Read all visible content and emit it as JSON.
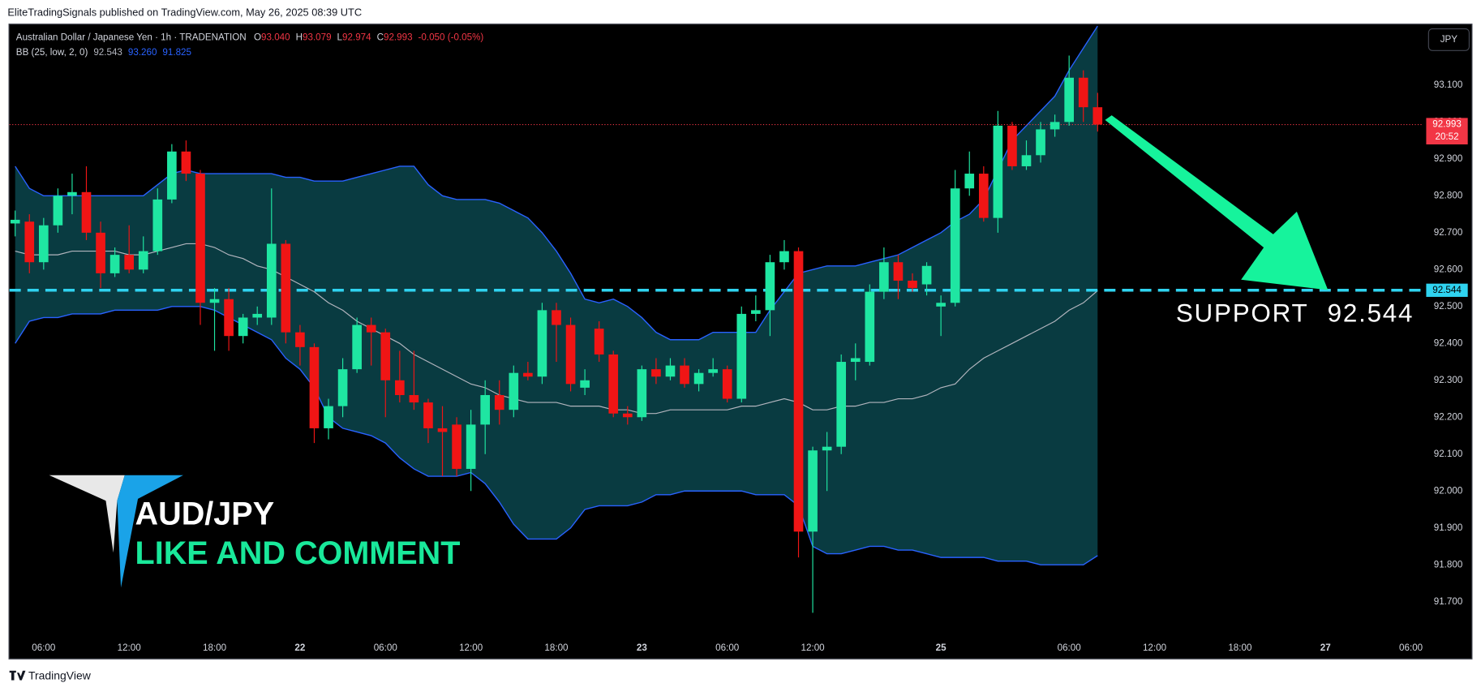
{
  "header": {
    "published": "EliteTradingSignals published on TradingView.com, May 26, 2025 08:39 UTC",
    "footer": "TradingView"
  },
  "chart_data": {
    "type": "candlestick",
    "symbol": "Australian Dollar / Japanese Yen · 1h · TRADENATION",
    "currency": "JPY",
    "ohlc_legend": [
      {
        "label": "O",
        "value": {
          "value": 93.04,
          "label": "93.040"
        }
      },
      {
        "label": "H",
        "value": {
          "value": 93.079,
          "label": "93.079"
        }
      },
      {
        "label": "L",
        "value": {
          "value": 92.974,
          "label": "92.974"
        }
      },
      {
        "label": "C",
        "value": {
          "value": 92.993,
          "label": "92.993"
        }
      }
    ],
    "change": "-0.050 (-0.05%)",
    "bb_legend": {
      "label": "BB (25, low, 2, 0)",
      "values": [
        {
          "value": 92.543,
          "label": "92.543"
        },
        {
          "value": 93.26,
          "label": "93.260"
        },
        {
          "value": 91.825,
          "label": "91.825"
        }
      ]
    },
    "up_color": "#1fe6a2",
    "down_color": "#f01515",
    "x": [
      0,
      1,
      2,
      3,
      4,
      5,
      6,
      7,
      8,
      9,
      10,
      11,
      12,
      13,
      14,
      15,
      16,
      17,
      18,
      19,
      20,
      21,
      22,
      23,
      24,
      25,
      26,
      27,
      28,
      29,
      30,
      31,
      32,
      33,
      34,
      35,
      36,
      37,
      38,
      39,
      40,
      41,
      42,
      43,
      44,
      45,
      46,
      47,
      48,
      49,
      50,
      51,
      52,
      53,
      54,
      55,
      56,
      57,
      58,
      59,
      60,
      61,
      62,
      63,
      64,
      65,
      66,
      67,
      68,
      69,
      70,
      71,
      72,
      73,
      74,
      75,
      76
    ],
    "open": [
      92.725,
      92.73,
      92.62,
      92.72,
      92.8,
      92.81,
      92.7,
      92.59,
      92.64,
      92.6,
      92.65,
      92.79,
      92.92,
      92.86,
      92.51,
      92.52,
      92.42,
      92.47,
      92.47,
      92.67,
      92.43,
      92.39,
      92.17,
      92.23,
      92.33,
      92.45,
      92.43,
      92.3,
      92.26,
      92.24,
      92.17,
      92.18,
      92.06,
      92.18,
      92.26,
      92.22,
      92.32,
      92.31,
      92.49,
      92.45,
      92.28,
      92.44,
      92.37,
      92.21,
      92.2,
      92.33,
      92.31,
      92.34,
      92.29,
      92.32,
      92.33,
      92.25,
      92.48,
      92.49,
      92.62,
      92.65,
      91.89,
      92.11,
      92.12,
      92.35,
      92.35,
      92.54,
      92.62,
      92.57,
      92.56,
      92.5,
      92.51,
      92.82,
      92.86,
      92.74,
      92.99,
      92.88,
      92.91,
      92.98,
      93.0,
      93.12,
      93.04
    ],
    "high": [
      92.76,
      92.75,
      92.74,
      92.82,
      92.86,
      92.88,
      92.73,
      92.66,
      92.72,
      92.69,
      92.82,
      92.94,
      92.95,
      92.87,
      92.55,
      92.55,
      92.48,
      92.5,
      92.82,
      92.68,
      92.45,
      92.4,
      92.25,
      92.36,
      92.47,
      92.47,
      92.44,
      92.38,
      92.38,
      92.25,
      92.23,
      92.2,
      92.22,
      92.3,
      92.3,
      92.34,
      92.35,
      92.51,
      92.51,
      92.47,
      92.33,
      92.46,
      92.38,
      92.23,
      92.34,
      92.36,
      92.36,
      92.36,
      92.33,
      92.36,
      92.34,
      92.5,
      92.53,
      92.64,
      92.68,
      92.66,
      92.12,
      92.16,
      92.37,
      92.4,
      92.56,
      92.66,
      92.64,
      92.59,
      92.62,
      92.53,
      92.87,
      92.92,
      92.88,
      93.03,
      93.0,
      92.95,
      93.0,
      93.02,
      93.18,
      93.14,
      93.079
    ],
    "low": [
      92.69,
      92.59,
      92.6,
      92.7,
      92.75,
      92.68,
      92.55,
      92.58,
      92.59,
      92.59,
      92.64,
      92.78,
      92.84,
      92.45,
      92.38,
      92.38,
      92.4,
      92.45,
      92.45,
      92.4,
      92.34,
      92.13,
      92.14,
      92.2,
      92.32,
      92.34,
      92.2,
      92.24,
      92.22,
      92.13,
      92.04,
      92.04,
      92.0,
      92.1,
      92.18,
      92.2,
      92.3,
      92.29,
      92.35,
      92.27,
      92.26,
      92.35,
      92.2,
      92.18,
      92.19,
      92.29,
      92.3,
      92.28,
      92.27,
      92.31,
      92.24,
      92.24,
      92.46,
      92.42,
      92.6,
      91.82,
      91.67,
      92.0,
      92.1,
      92.3,
      92.34,
      92.52,
      92.52,
      92.54,
      92.53,
      92.42,
      92.5,
      92.8,
      92.73,
      92.7,
      92.87,
      92.87,
      92.89,
      92.96,
      92.99,
      93.0,
      92.974
    ],
    "close": [
      92.735,
      92.62,
      92.72,
      92.8,
      92.81,
      92.7,
      92.59,
      92.64,
      92.6,
      92.65,
      92.79,
      92.92,
      92.86,
      92.51,
      92.52,
      92.42,
      92.47,
      92.48,
      92.67,
      92.43,
      92.39,
      92.17,
      92.23,
      92.33,
      92.45,
      92.43,
      92.3,
      92.26,
      92.24,
      92.17,
      92.16,
      92.06,
      92.18,
      92.26,
      92.22,
      92.32,
      92.31,
      92.49,
      92.45,
      92.29,
      92.3,
      92.37,
      92.21,
      92.2,
      92.33,
      92.31,
      92.34,
      92.29,
      92.32,
      92.33,
      92.25,
      92.48,
      92.49,
      92.62,
      92.65,
      91.89,
      92.11,
      92.12,
      92.35,
      92.36,
      92.54,
      92.62,
      92.57,
      92.55,
      92.61,
      92.51,
      92.82,
      92.86,
      92.74,
      92.99,
      92.88,
      92.91,
      92.98,
      93.0,
      93.12,
      93.04,
      92.993
    ],
    "bands": {
      "band_color": "#093b41",
      "line_color": "#2962ff",
      "basis_color": "#b2b5be",
      "upper": [
        92.88,
        92.82,
        92.8,
        92.8,
        92.8,
        92.8,
        92.8,
        92.8,
        92.8,
        92.8,
        92.83,
        92.86,
        92.87,
        92.86,
        92.86,
        92.86,
        92.86,
        92.86,
        92.86,
        92.85,
        92.85,
        92.84,
        92.84,
        92.84,
        92.85,
        92.86,
        92.87,
        92.88,
        92.88,
        92.83,
        92.8,
        92.79,
        92.79,
        92.79,
        92.78,
        92.76,
        92.74,
        92.7,
        92.65,
        92.59,
        92.52,
        92.51,
        92.52,
        92.5,
        92.47,
        92.43,
        92.41,
        92.41,
        92.41,
        92.43,
        92.43,
        92.43,
        92.43,
        92.49,
        92.54,
        92.59,
        92.6,
        92.61,
        92.61,
        92.61,
        92.62,
        92.63,
        92.64,
        92.66,
        92.68,
        92.7,
        92.73,
        92.75,
        92.79,
        92.87,
        92.95,
        92.99,
        93.03,
        93.07,
        93.14,
        93.2,
        93.26
      ],
      "basis": [
        92.65,
        92.64,
        92.64,
        92.64,
        92.65,
        92.65,
        92.65,
        92.65,
        92.64,
        92.64,
        92.65,
        92.66,
        92.67,
        92.67,
        92.66,
        92.64,
        92.63,
        92.61,
        92.6,
        92.58,
        92.56,
        92.54,
        92.51,
        92.49,
        92.46,
        92.44,
        92.42,
        92.4,
        92.37,
        92.35,
        92.33,
        92.31,
        92.29,
        92.28,
        92.26,
        92.25,
        92.24,
        92.24,
        92.24,
        92.23,
        92.23,
        92.23,
        92.22,
        92.22,
        92.21,
        92.21,
        92.22,
        92.22,
        92.22,
        92.22,
        92.22,
        92.23,
        92.23,
        92.24,
        92.25,
        92.24,
        92.22,
        92.22,
        92.23,
        92.23,
        92.24,
        92.24,
        92.25,
        92.25,
        92.26,
        92.28,
        92.29,
        92.33,
        92.36,
        92.38,
        92.4,
        92.42,
        92.44,
        92.46,
        92.49,
        92.51,
        92.543
      ],
      "lower": [
        92.4,
        92.46,
        92.47,
        92.47,
        92.48,
        92.48,
        92.48,
        92.49,
        92.49,
        92.49,
        92.49,
        92.5,
        92.5,
        92.5,
        92.49,
        92.47,
        92.45,
        92.43,
        92.41,
        92.36,
        92.33,
        92.28,
        92.2,
        92.17,
        92.16,
        92.15,
        92.13,
        92.09,
        92.06,
        92.04,
        92.04,
        92.04,
        92.05,
        92.02,
        91.97,
        91.91,
        91.87,
        91.87,
        91.87,
        91.9,
        91.95,
        91.96,
        91.96,
        91.96,
        91.97,
        91.99,
        91.99,
        92.0,
        92.0,
        92.0,
        92.0,
        92.0,
        91.99,
        91.99,
        91.99,
        91.96,
        91.85,
        91.83,
        91.83,
        91.84,
        91.85,
        91.85,
        91.84,
        91.84,
        91.83,
        91.82,
        91.82,
        91.82,
        91.82,
        91.81,
        91.81,
        91.81,
        91.8,
        91.8,
        91.8,
        91.8,
        91.825
      ]
    },
    "last": {
      "value": 92.993,
      "label": "92.993",
      "countdown": "20:52",
      "color": "#f23645"
    },
    "support": {
      "label": "SUPPORT",
      "value": 92.544,
      "value_label": "92.544",
      "color": "#2fd3f0"
    },
    "annotations": {
      "title": "AUD/JPY",
      "subtitle": "LIKE AND COMMENT",
      "subtitle_color": "#19e89a"
    },
    "xlim": [
      -0.4,
      98.74
    ],
    "ylim": [
      91.6,
      93.264
    ],
    "xticks": [
      {
        "value": 2,
        "label": "06:00"
      },
      {
        "value": 8,
        "label": "12:00"
      },
      {
        "value": 14,
        "label": "18:00"
      },
      {
        "value": 20,
        "label": "22"
      },
      {
        "value": 26,
        "label": "06:00"
      },
      {
        "value": 32,
        "label": "12:00"
      },
      {
        "value": 38,
        "label": "18:00"
      },
      {
        "value": 44,
        "label": "23"
      },
      {
        "value": 50,
        "label": "06:00"
      },
      {
        "value": 56,
        "label": "12:00"
      },
      {
        "value": 65,
        "label": "25"
      },
      {
        "value": 74,
        "label": "06:00"
      },
      {
        "value": 80,
        "label": "12:00"
      },
      {
        "value": 86,
        "label": "18:00"
      },
      {
        "value": 92,
        "label": "27"
      },
      {
        "value": 98,
        "label": "06:00"
      }
    ],
    "yticks": [
      {
        "value": 93.1,
        "label": "93.100"
      },
      {
        "value": 93.0,
        "label": "93.000"
      },
      {
        "value": 92.9,
        "label": "92.900"
      },
      {
        "value": 92.8,
        "label": "92.800"
      },
      {
        "value": 92.7,
        "label": "92.700"
      },
      {
        "value": 92.6,
        "label": "92.600"
      },
      {
        "value": 92.5,
        "label": "92.500"
      },
      {
        "value": 92.4,
        "label": "92.400"
      },
      {
        "value": 92.3,
        "label": "92.300"
      },
      {
        "value": 92.2,
        "label": "92.200"
      },
      {
        "value": 92.1,
        "label": "92.100"
      },
      {
        "value": 92.0,
        "label": "92.000"
      },
      {
        "value": 91.9,
        "label": "91.900"
      },
      {
        "value": 91.8,
        "label": "91.800"
      },
      {
        "value": 91.7,
        "label": "91.700"
      }
    ]
  }
}
